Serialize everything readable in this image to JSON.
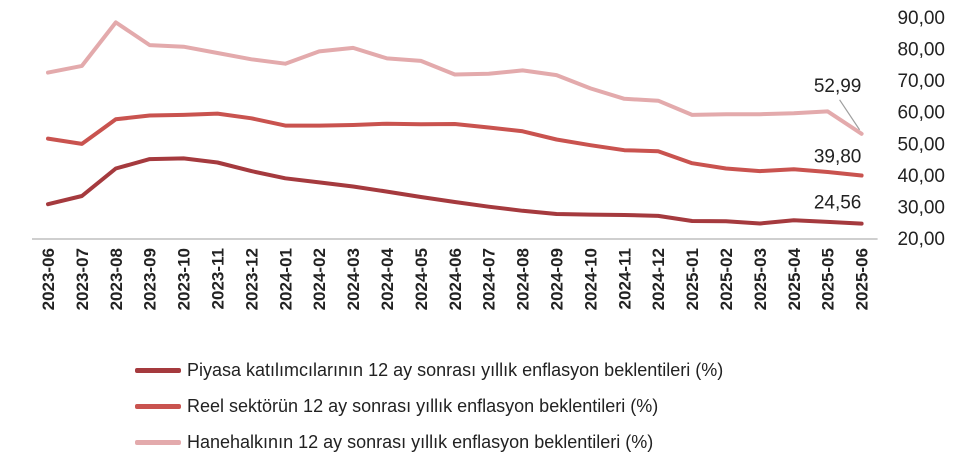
{
  "chart_data": {
    "type": "line",
    "categories": [
      "2023-06",
      "2023-07",
      "2023-08",
      "2023-09",
      "2023-10",
      "2023-11",
      "2023-12",
      "2024-01",
      "2024-02",
      "2024-03",
      "2024-04",
      "2024-05",
      "2024-06",
      "2024-07",
      "2024-08",
      "2024-09",
      "2024-10",
      "2024-11",
      "2024-12",
      "2025-01",
      "2025-02",
      "2025-03",
      "2025-04",
      "2025-05",
      "2025-06"
    ],
    "y_ticks": [
      "20,00",
      "30,00",
      "40,00",
      "50,00",
      "60,00",
      "70,00",
      "80,00",
      "90,00"
    ],
    "ylim": [
      20,
      90
    ],
    "y_axis_position": "right",
    "grid": false,
    "legend_position": "bottom",
    "series": [
      {
        "name": "Piyasa katılımcılarının 12 ay sonrası yıllık enflasyon beklentileri (%)",
        "color": "#a53a3e",
        "values": [
          30.7,
          33.3,
          42.0,
          45.0,
          45.2,
          43.9,
          41.2,
          38.9,
          37.6,
          36.3,
          34.7,
          33.0,
          31.4,
          29.9,
          28.6,
          27.6,
          27.4,
          27.3,
          27.0,
          25.4,
          25.3,
          24.6,
          25.6,
          25.1,
          24.56
        ],
        "end_label": "24,56"
      },
      {
        "name": "Reel sektörün 12 ay sonrası yıllık enflasyon beklentileri (%)",
        "color": "#c9534f",
        "values": [
          51.5,
          49.8,
          57.6,
          58.8,
          59.0,
          59.4,
          57.9,
          55.6,
          55.6,
          55.8,
          56.2,
          56.0,
          56.1,
          55.0,
          53.8,
          51.2,
          49.4,
          47.8,
          47.5,
          43.7,
          42.0,
          41.2,
          41.8,
          40.9,
          39.8
        ],
        "end_label": "39,80"
      },
      {
        "name": "Hanehalkının 12 ay sonrası yıllık enflasyon beklentileri (%)",
        "color": "#e3aaac",
        "values": [
          72.4,
          74.5,
          88.3,
          81.1,
          80.6,
          78.6,
          76.6,
          75.2,
          79.1,
          80.2,
          76.9,
          76.1,
          71.8,
          72.0,
          73.1,
          71.6,
          67.4,
          64.1,
          63.5,
          59.0,
          59.2,
          59.2,
          59.5,
          60.1,
          52.99
        ],
        "end_label": "52,99"
      }
    ]
  }
}
